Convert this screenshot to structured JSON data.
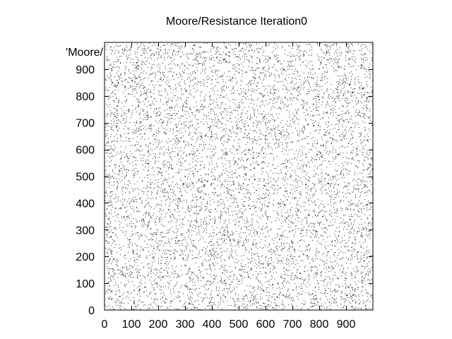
{
  "chart_data": {
    "type": "scatter",
    "title": "Moore/Resistance Iteration0",
    "xlabel": "",
    "ylabel": "",
    "xlim": [
      0,
      1000
    ],
    "ylim": [
      0,
      1000
    ],
    "x_ticks": [
      0,
      100,
      200,
      300,
      400,
      500,
      600,
      700,
      800,
      900
    ],
    "y_ticks": [
      0,
      100,
      200,
      300,
      400,
      500,
      600,
      700,
      800,
      900
    ],
    "grid": false,
    "legend": {
      "entries": [
        "'Moore/"
      ],
      "placement": "top-left"
    },
    "series": [
      {
        "name": "'Moore/",
        "marker": "dot",
        "color": "#000000",
        "distribution": "uniform random",
        "x_range": [
          0,
          1000
        ],
        "y_range": [
          0,
          1000
        ],
        "approx_point_count": 25000
      }
    ]
  }
}
